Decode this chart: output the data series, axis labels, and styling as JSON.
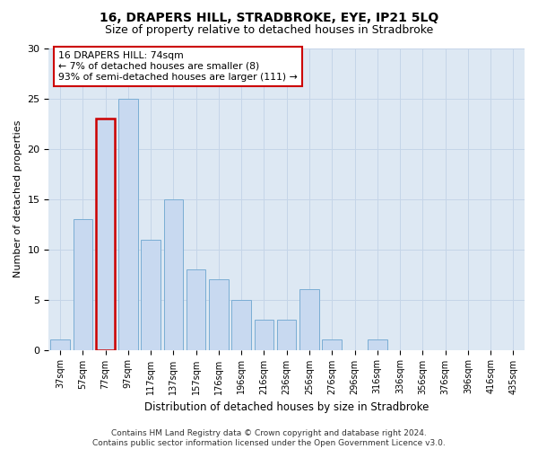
{
  "title": "16, DRAPERS HILL, STRADBROKE, EYE, IP21 5LQ",
  "subtitle": "Size of property relative to detached houses in Stradbroke",
  "xlabel": "Distribution of detached houses by size in Stradbroke",
  "ylabel": "Number of detached properties",
  "categories": [
    "37sqm",
    "57sqm",
    "77sqm",
    "97sqm",
    "117sqm",
    "137sqm",
    "157sqm",
    "176sqm",
    "196sqm",
    "216sqm",
    "236sqm",
    "256sqm",
    "276sqm",
    "296sqm",
    "316sqm",
    "336sqm",
    "356sqm",
    "376sqm",
    "396sqm",
    "416sqm",
    "435sqm"
  ],
  "values": [
    1,
    13,
    23,
    25,
    11,
    15,
    8,
    7,
    5,
    3,
    3,
    6,
    1,
    0,
    1,
    0,
    0,
    0,
    0,
    0,
    0
  ],
  "bar_color": "#c8d9f0",
  "bar_edge_color": "#7aadd4",
  "highlight_index": 2,
  "highlight_bar_edge_color": "#cc0000",
  "annotation_text": "16 DRAPERS HILL: 74sqm\n← 7% of detached houses are smaller (8)\n93% of semi-detached houses are larger (111) →",
  "annotation_box_color": "#ffffff",
  "annotation_box_edge_color": "#cc0000",
  "ylim": [
    0,
    30
  ],
  "yticks": [
    0,
    5,
    10,
    15,
    20,
    25,
    30
  ],
  "grid_color": "#c5d5e8",
  "background_color": "#dde8f3",
  "footer": "Contains HM Land Registry data © Crown copyright and database right 2024.\nContains public sector information licensed under the Open Government Licence v3.0.",
  "title_fontsize": 10,
  "subtitle_fontsize": 9,
  "xlabel_fontsize": 8.5,
  "ylabel_fontsize": 8,
  "tick_fontsize": 7,
  "annotation_fontsize": 7.8,
  "footer_fontsize": 6.5
}
